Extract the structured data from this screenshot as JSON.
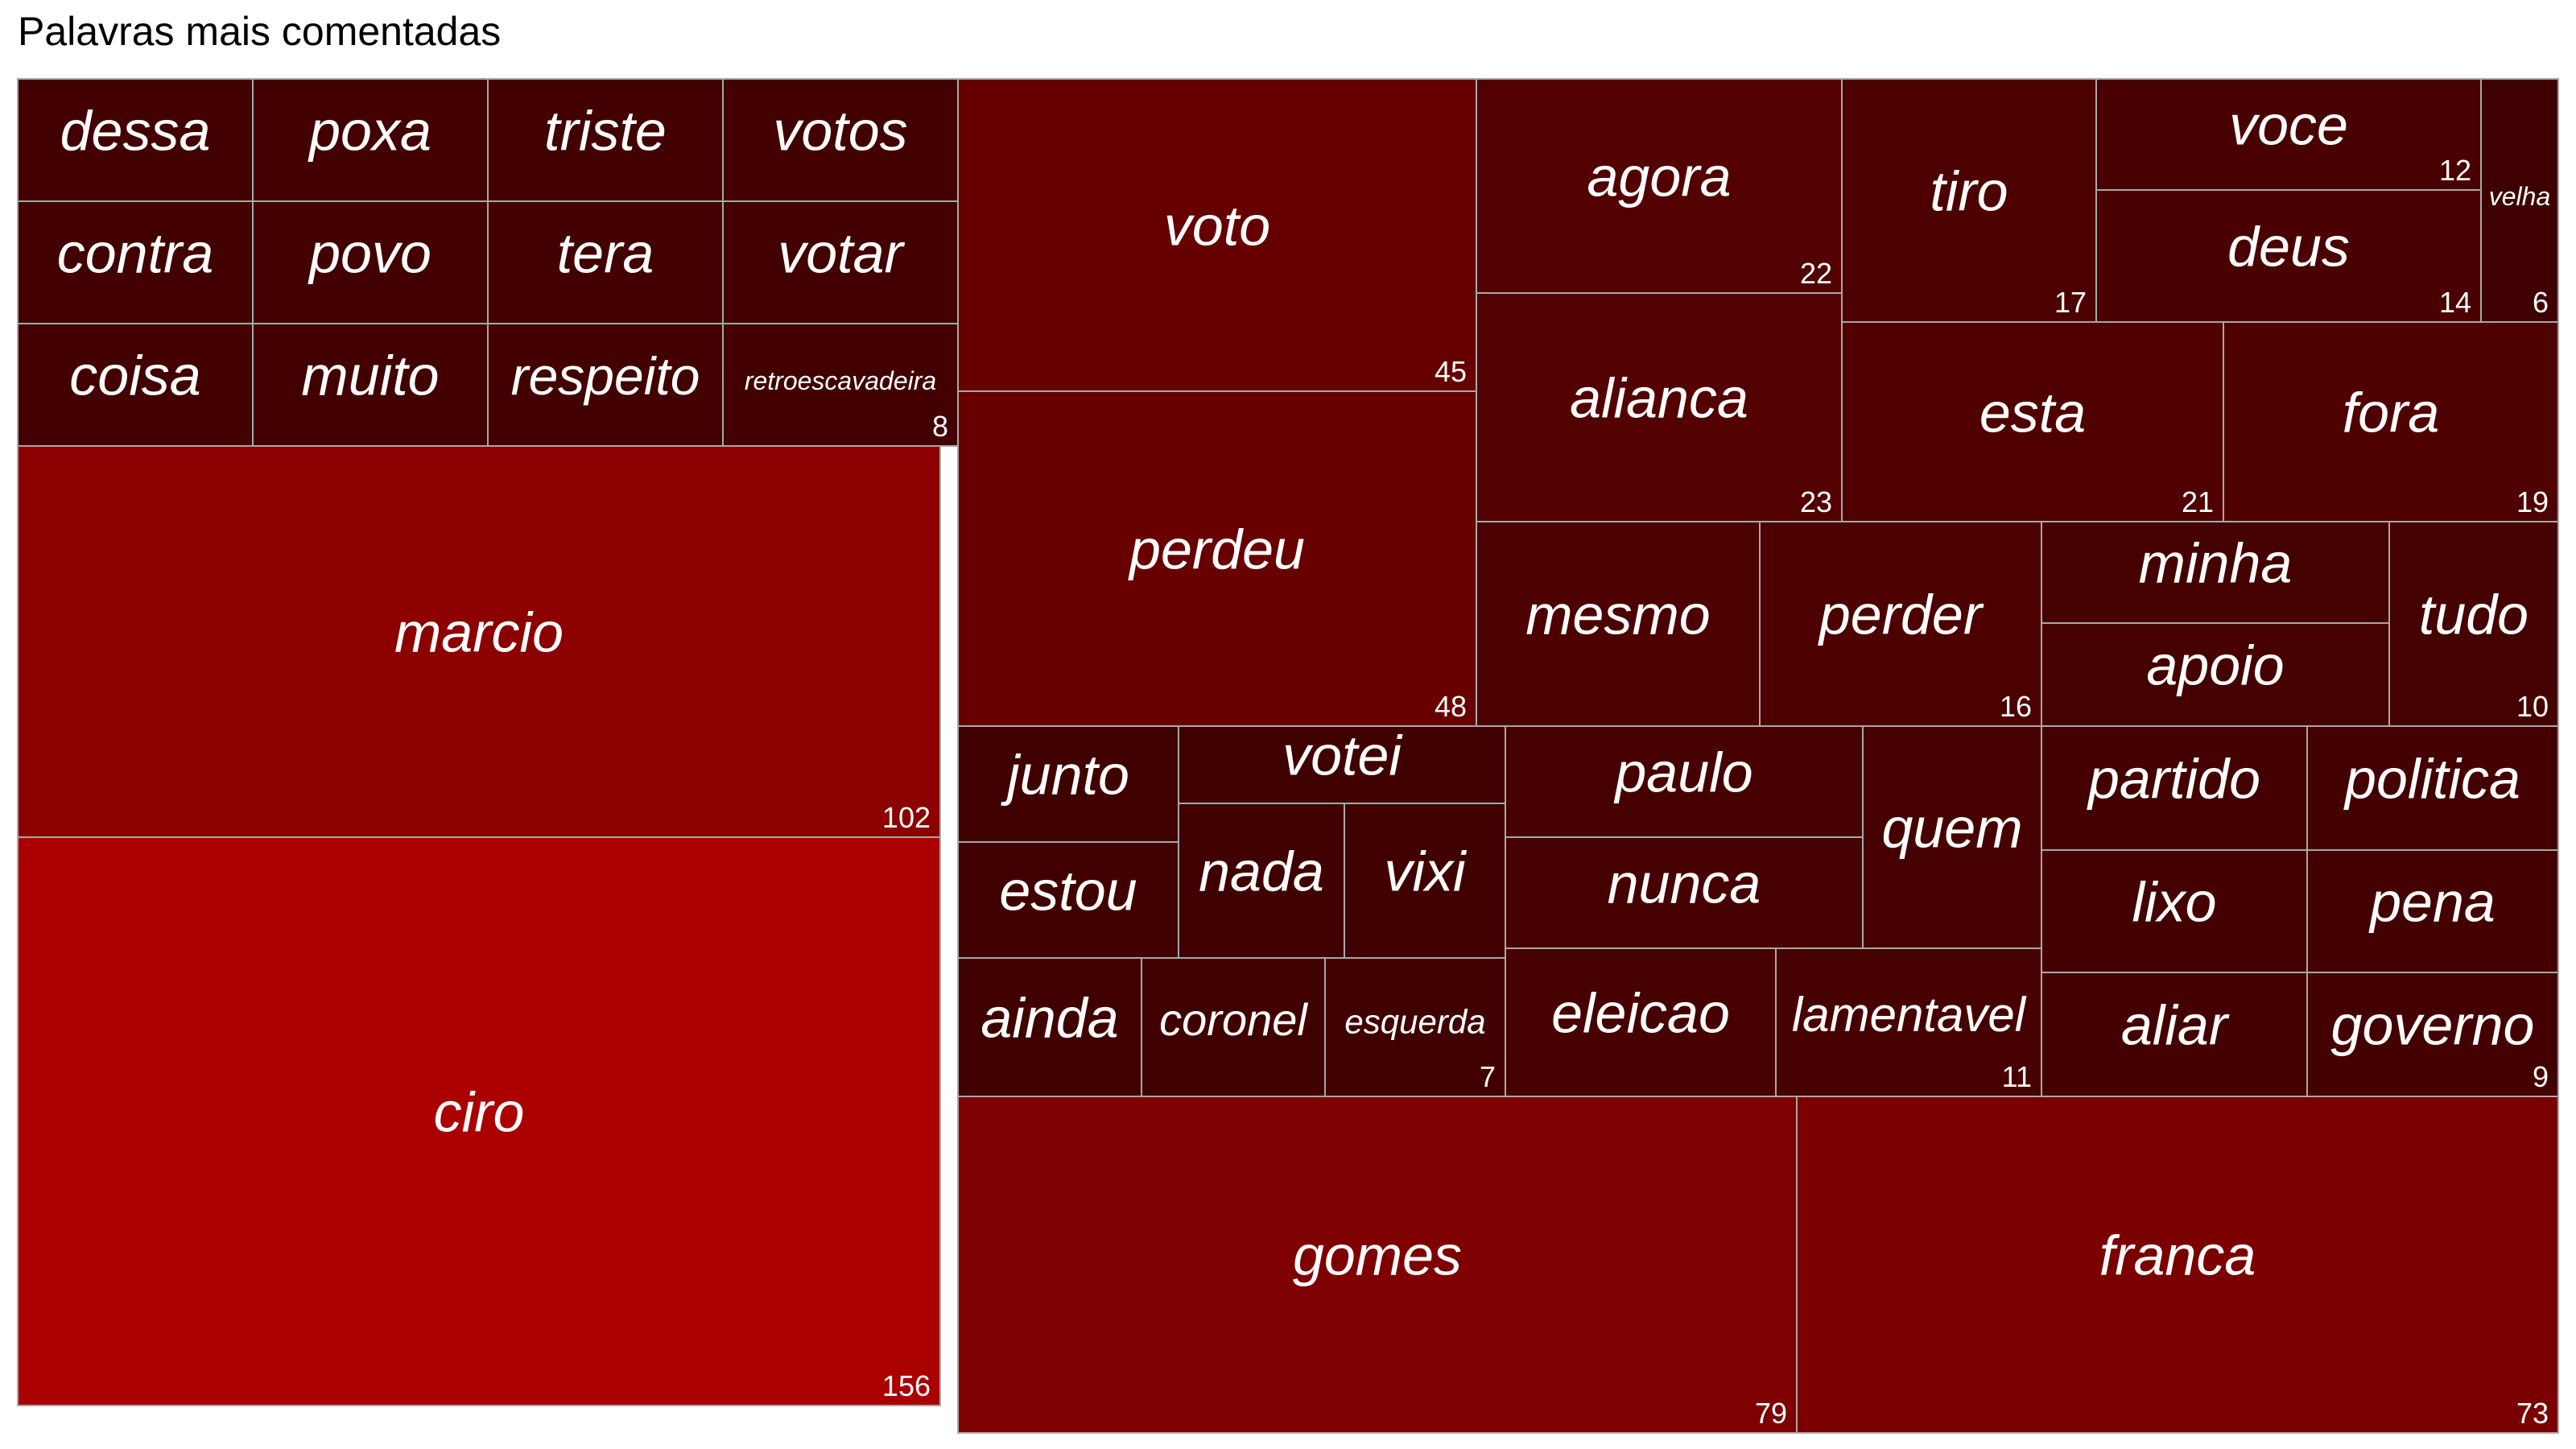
{
  "chart_data": {
    "type": "treemap",
    "title": "Palavras mais comentadas",
    "value_labels_shown_for_smallest_in_group": true,
    "color_scale": {
      "low": "#3e0000",
      "high": "#ab0000"
    },
    "items": [
      {
        "word": "ciro",
        "value": 156,
        "label": "156"
      },
      {
        "word": "marcio",
        "value": 102,
        "label": "102"
      },
      {
        "word": "gomes",
        "value": 79,
        "label": "79"
      },
      {
        "word": "franca",
        "value": 73,
        "label": "73"
      },
      {
        "word": "perdeu",
        "value": 48,
        "label": "48"
      },
      {
        "word": "voto",
        "value": 45,
        "label": "45"
      },
      {
        "word": "alianca",
        "value": 23,
        "label": "23"
      },
      {
        "word": "agora",
        "value": 22,
        "label": "22"
      },
      {
        "word": "esta",
        "value": 21,
        "label": "21"
      },
      {
        "word": "fora",
        "value": 19,
        "label": "19"
      },
      {
        "word": "tiro",
        "value": 17,
        "label": "17"
      },
      {
        "word": "mesmo",
        "value": 16,
        "label": ""
      },
      {
        "word": "perder",
        "value": 16,
        "label": "16"
      },
      {
        "word": "deus",
        "value": 14,
        "label": "14"
      },
      {
        "word": "voce",
        "value": 12,
        "label": "12"
      },
      {
        "word": "eleicao",
        "value": 11,
        "label": ""
      },
      {
        "word": "lamentavel",
        "value": 11,
        "label": "11"
      },
      {
        "word": "quem",
        "value": 11,
        "label": ""
      },
      {
        "word": "paulo",
        "value": 11,
        "label": ""
      },
      {
        "word": "nunca",
        "value": 11,
        "label": ""
      },
      {
        "word": "minha",
        "value": 10,
        "label": ""
      },
      {
        "word": "apoio",
        "value": 10,
        "label": ""
      },
      {
        "word": "tudo",
        "value": 10,
        "label": "10"
      },
      {
        "word": "partido",
        "value": 9,
        "label": ""
      },
      {
        "word": "politica",
        "value": 9,
        "label": ""
      },
      {
        "word": "lixo",
        "value": 9,
        "label": ""
      },
      {
        "word": "pena",
        "value": 9,
        "label": ""
      },
      {
        "word": "aliar",
        "value": 9,
        "label": ""
      },
      {
        "word": "governo",
        "value": 9,
        "label": "9"
      },
      {
        "word": "dessa",
        "value": 8,
        "label": ""
      },
      {
        "word": "poxa",
        "value": 8,
        "label": ""
      },
      {
        "word": "triste",
        "value": 8,
        "label": ""
      },
      {
        "word": "votos",
        "value": 8,
        "label": ""
      },
      {
        "word": "contra",
        "value": 8,
        "label": ""
      },
      {
        "word": "povo",
        "value": 8,
        "label": ""
      },
      {
        "word": "tera",
        "value": 8,
        "label": ""
      },
      {
        "word": "votar",
        "value": 8,
        "label": ""
      },
      {
        "word": "coisa",
        "value": 8,
        "label": ""
      },
      {
        "word": "muito",
        "value": 8,
        "label": ""
      },
      {
        "word": "respeito",
        "value": 8,
        "label": ""
      },
      {
        "word": "retroescavadeira",
        "value": 8,
        "label": "8"
      },
      {
        "word": "junto",
        "value": 7,
        "label": ""
      },
      {
        "word": "estou",
        "value": 7,
        "label": ""
      },
      {
        "word": "votei",
        "value": 7,
        "label": ""
      },
      {
        "word": "nada",
        "value": 7,
        "label": ""
      },
      {
        "word": "vixi",
        "value": 7,
        "label": ""
      },
      {
        "word": "ainda",
        "value": 7,
        "label": ""
      },
      {
        "word": "coronel",
        "value": 7,
        "label": ""
      },
      {
        "word": "esquerda",
        "value": 7,
        "label": "7"
      },
      {
        "word": "velha",
        "value": 6,
        "label": "6"
      }
    ]
  }
}
